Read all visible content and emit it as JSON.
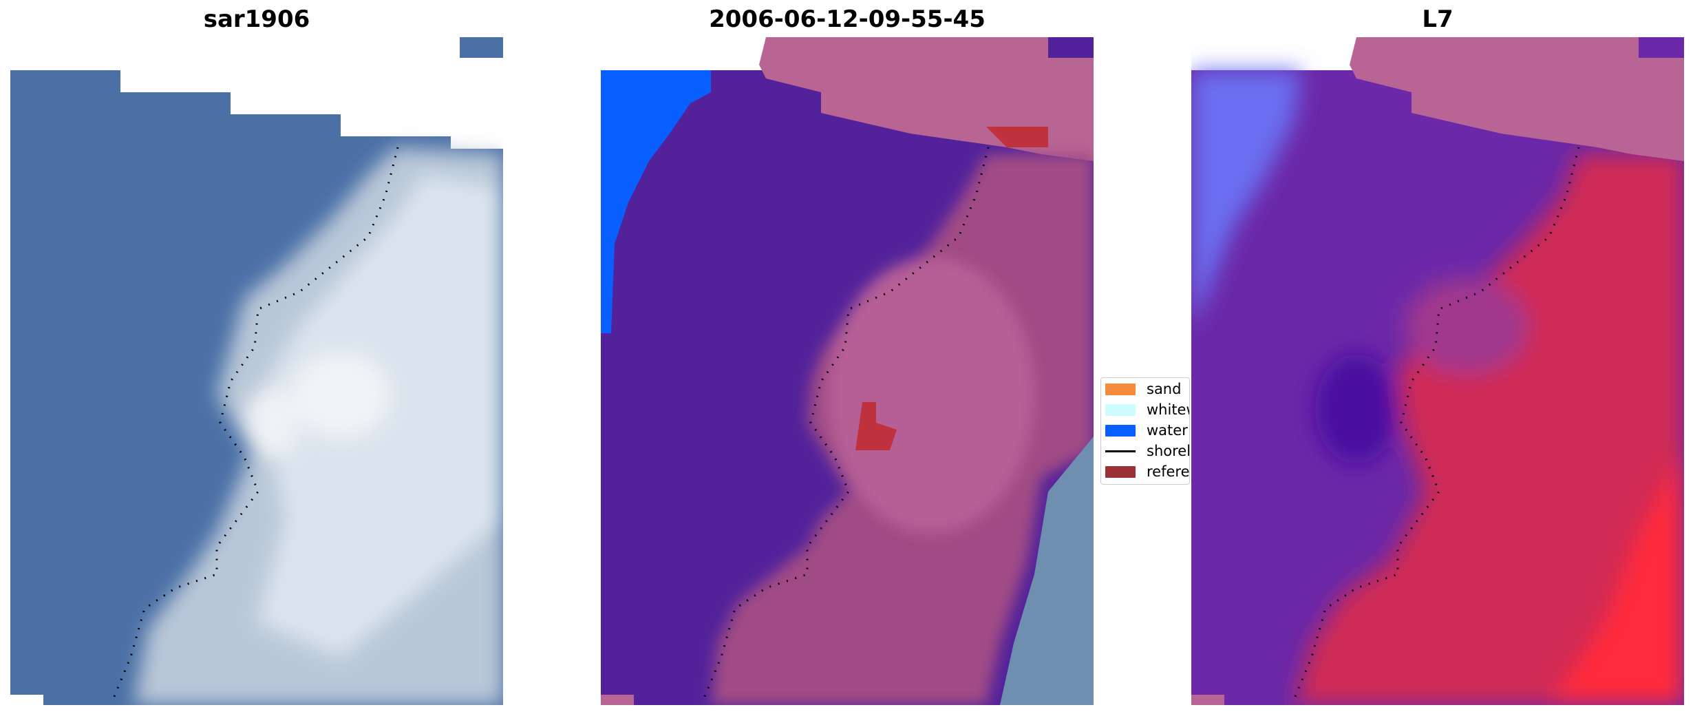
{
  "panels": [
    {
      "title": "sar1906"
    },
    {
      "title": "2006-06-12-09-55-45"
    },
    {
      "title": "L7"
    }
  ],
  "legend": {
    "items": [
      {
        "label": "sand",
        "color": "#f58b3c",
        "kind": "patch"
      },
      {
        "label": "whitewater",
        "color": "#cdfcff",
        "kind": "patch"
      },
      {
        "label": "water",
        "color": "#0a5fff",
        "kind": "patch"
      },
      {
        "label": "shoreline",
        "color": "#000000",
        "kind": "line"
      },
      {
        "label": "reference",
        "color": "#9b3134",
        "kind": "patch"
      }
    ]
  },
  "colors": {
    "rgb_water": "#4a6fa5",
    "rgb_whitewater": "#c8d4e0",
    "class_water": "#53229a",
    "class_land": "#b86494",
    "class_ocean_blue": "#0a5fff",
    "nir_water": "#6f2aaa",
    "nir_land": "#d22a4e"
  }
}
